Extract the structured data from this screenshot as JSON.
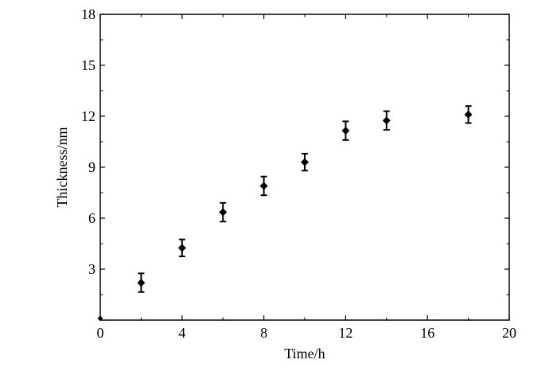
{
  "chart_data": {
    "type": "scatter",
    "title": "",
    "xlabel": "Time/h",
    "ylabel": "Thickness/nm",
    "xlim": [
      0,
      20
    ],
    "ylim": [
      0,
      18
    ],
    "xticks": [
      0,
      4,
      8,
      12,
      16,
      20
    ],
    "yticks": [
      3,
      6,
      9,
      12,
      15,
      18
    ],
    "grid": false,
    "error_bars": true,
    "series": [
      {
        "points": [
          {
            "x": 2,
            "y": 2.2,
            "err": 0.55
          },
          {
            "x": 4,
            "y": 4.25,
            "err": 0.5
          },
          {
            "x": 6,
            "y": 6.35,
            "err": 0.55
          },
          {
            "x": 8,
            "y": 7.9,
            "err": 0.55
          },
          {
            "x": 10,
            "y": 9.3,
            "err": 0.5
          },
          {
            "x": 12,
            "y": 11.15,
            "err": 0.55
          },
          {
            "x": 14,
            "y": 11.75,
            "err": 0.55
          },
          {
            "x": 18,
            "y": 12.1,
            "err": 0.5
          }
        ]
      }
    ],
    "extra_points": [
      {
        "x": 0,
        "y": 0.1
      }
    ],
    "colors": {
      "marker": "#000000",
      "axis": "#000000"
    }
  }
}
